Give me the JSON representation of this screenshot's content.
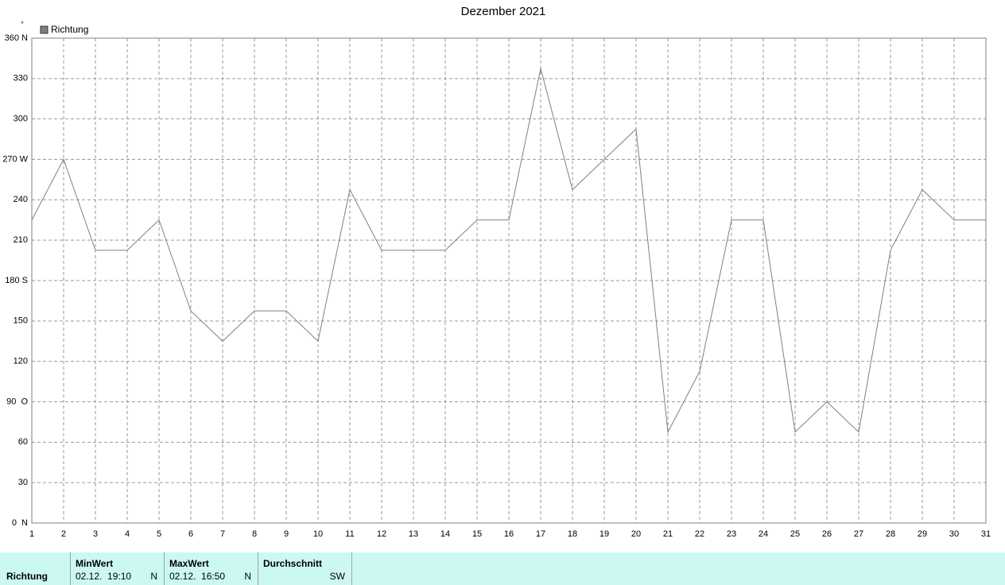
{
  "chart_data": {
    "type": "line",
    "title": "Dezember 2021",
    "y_unit": "°",
    "x": [
      1,
      2,
      3,
      4,
      5,
      6,
      7,
      8,
      9,
      10,
      11,
      12,
      13,
      14,
      15,
      16,
      17,
      18,
      19,
      20,
      21,
      22,
      23,
      24,
      25,
      26,
      27,
      28,
      29,
      30,
      31
    ],
    "series": [
      {
        "name": "Richtung",
        "color": "#808080",
        "values": [
          225,
          270,
          202.5,
          202.5,
          225,
          157.5,
          135,
          157.5,
          157.5,
          135,
          247.5,
          202.5,
          202.5,
          202.5,
          225,
          225,
          337.5,
          247.5,
          270,
          292.5,
          67.5,
          112.5,
          225,
          225,
          67.5,
          90,
          67.5,
          202.5,
          247.5,
          225,
          225
        ]
      }
    ],
    "xlim": [
      1,
      31
    ],
    "xticks": [
      1,
      2,
      3,
      4,
      5,
      6,
      7,
      8,
      9,
      10,
      11,
      12,
      13,
      14,
      15,
      16,
      17,
      18,
      19,
      20,
      21,
      22,
      23,
      24,
      25,
      26,
      27,
      28,
      29,
      30,
      31
    ],
    "ylim": [
      0,
      360
    ],
    "yticks": [
      {
        "value": 0,
        "label": "0  N"
      },
      30,
      60,
      {
        "value": 90,
        "label": "90  O"
      },
      120,
      150,
      {
        "value": 180,
        "label": "180 S"
      },
      210,
      240,
      {
        "value": 270,
        "label": "270 W"
      },
      300,
      330,
      {
        "value": 360,
        "label": "360 N"
      }
    ],
    "grid": true
  },
  "table": {
    "row_label": "Richtung",
    "columns": [
      {
        "header": "MinWert",
        "time": "02.12.  19:10",
        "direction": "N"
      },
      {
        "header": "MaxWert",
        "time": "02.12.  16:50",
        "direction": "N"
      },
      {
        "header": "Durchschnitt",
        "direction": "SW"
      }
    ]
  }
}
